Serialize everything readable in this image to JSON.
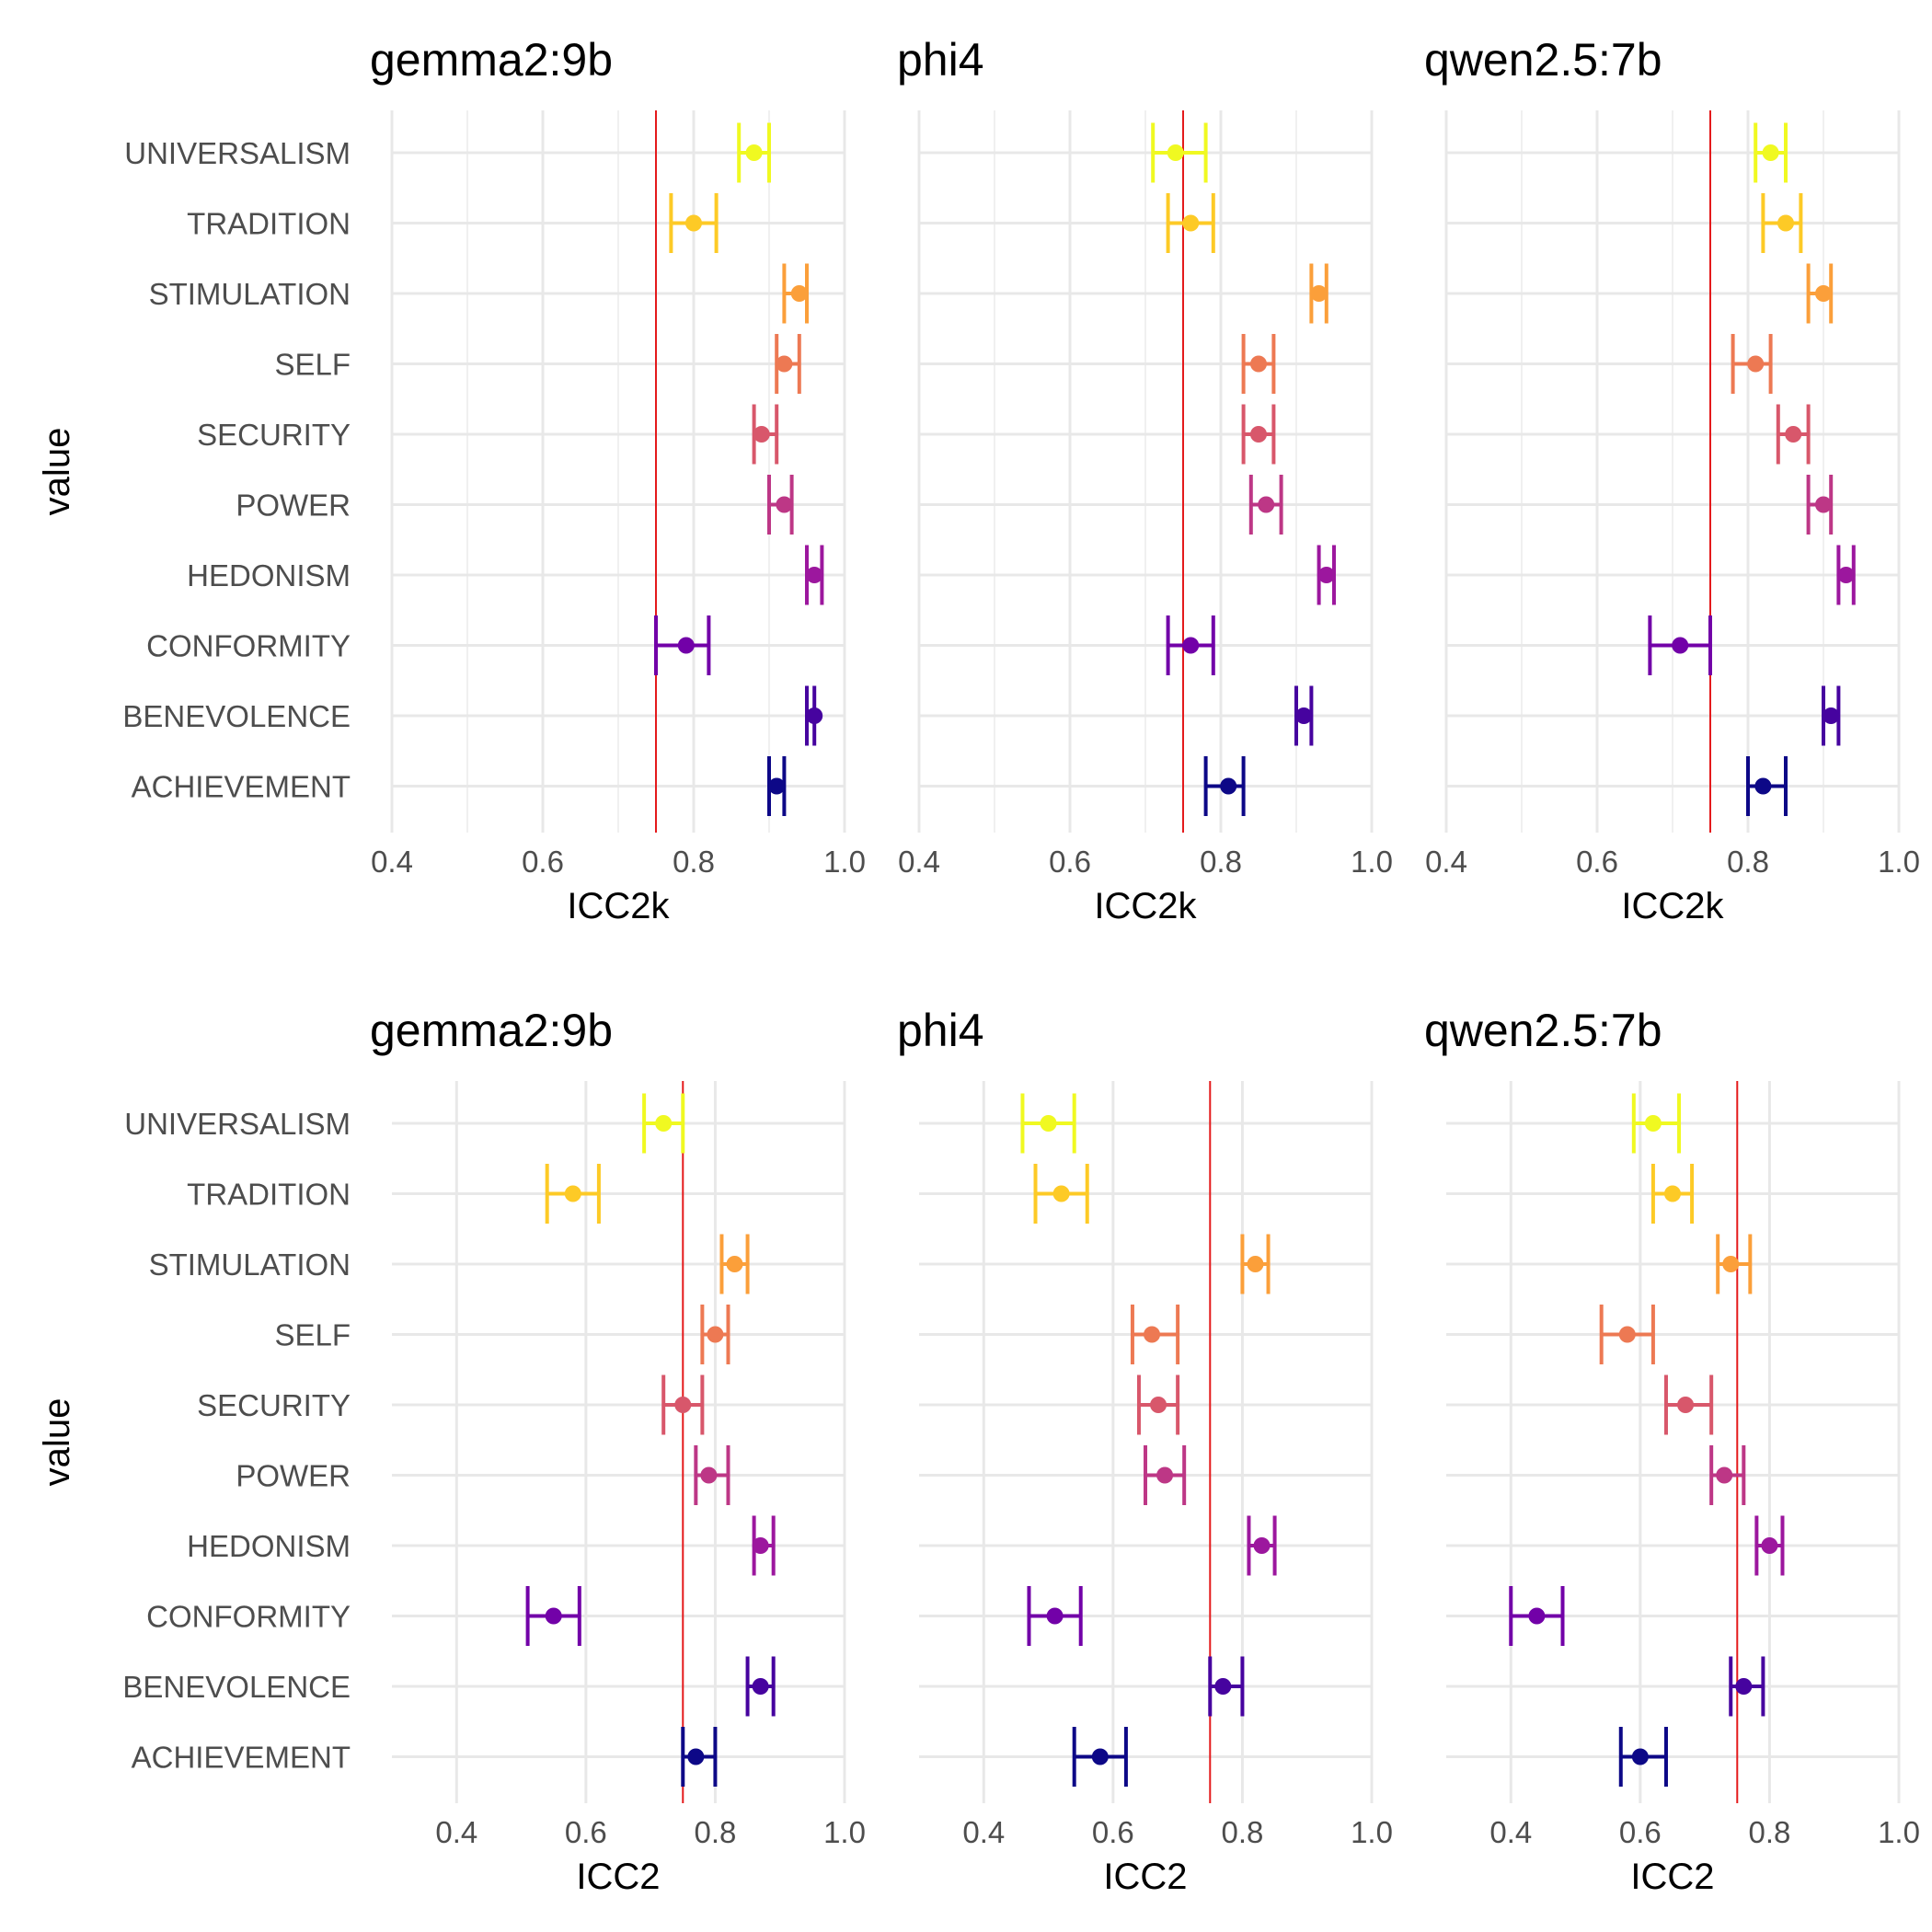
{
  "chart_data": {
    "type": "scatter",
    "description_style": "faceted point-range (point estimate with confidence interval error bars)",
    "categories": [
      "UNIVERSALISM",
      "TRADITION",
      "STIMULATION",
      "SELF",
      "SECURITY",
      "POWER",
      "HEDONISM",
      "CONFORMITY",
      "BENEVOLENCE",
      "ACHIEVEMENT"
    ],
    "colors": [
      "#f0f921",
      "#fdca26",
      "#fb9f3a",
      "#ed7953",
      "#d8576b",
      "#bd3786",
      "#9c179e",
      "#7201a8",
      "#46039f",
      "#0d0887"
    ],
    "ylabel": "value",
    "reference_line": {
      "x": 0.75,
      "color": "#e41a1c"
    },
    "grid": true,
    "legend": "none",
    "rows": [
      {
        "xlabel": "ICC2k",
        "xlim": [
          0.4,
          1.0
        ],
        "xticks": [
          "0.4",
          "0.6",
          "0.8",
          "1.0"
        ],
        "panels": [
          {
            "title": "gemma2:9b",
            "points": [
              {
                "est": 0.88,
                "lo": 0.86,
                "hi": 0.9
              },
              {
                "est": 0.8,
                "lo": 0.77,
                "hi": 0.83
              },
              {
                "est": 0.94,
                "lo": 0.92,
                "hi": 0.95
              },
              {
                "est": 0.92,
                "lo": 0.91,
                "hi": 0.94
              },
              {
                "est": 0.89,
                "lo": 0.88,
                "hi": 0.91
              },
              {
                "est": 0.92,
                "lo": 0.9,
                "hi": 0.93
              },
              {
                "est": 0.96,
                "lo": 0.95,
                "hi": 0.97
              },
              {
                "est": 0.79,
                "lo": 0.75,
                "hi": 0.82
              },
              {
                "est": 0.96,
                "lo": 0.95,
                "hi": 0.96
              },
              {
                "est": 0.91,
                "lo": 0.9,
                "hi": 0.92
              }
            ]
          },
          {
            "title": "phi4",
            "points": [
              {
                "est": 0.74,
                "lo": 0.71,
                "hi": 0.78
              },
              {
                "est": 0.76,
                "lo": 0.73,
                "hi": 0.79
              },
              {
                "est": 0.93,
                "lo": 0.92,
                "hi": 0.94
              },
              {
                "est": 0.85,
                "lo": 0.83,
                "hi": 0.87
              },
              {
                "est": 0.85,
                "lo": 0.83,
                "hi": 0.87
              },
              {
                "est": 0.86,
                "lo": 0.84,
                "hi": 0.88
              },
              {
                "est": 0.94,
                "lo": 0.93,
                "hi": 0.95
              },
              {
                "est": 0.76,
                "lo": 0.73,
                "hi": 0.79
              },
              {
                "est": 0.91,
                "lo": 0.9,
                "hi": 0.92
              },
              {
                "est": 0.81,
                "lo": 0.78,
                "hi": 0.83
              }
            ]
          },
          {
            "title": "qwen2.5:7b",
            "points": [
              {
                "est": 0.83,
                "lo": 0.81,
                "hi": 0.85
              },
              {
                "est": 0.85,
                "lo": 0.82,
                "hi": 0.87
              },
              {
                "est": 0.9,
                "lo": 0.88,
                "hi": 0.91
              },
              {
                "est": 0.81,
                "lo": 0.78,
                "hi": 0.83
              },
              {
                "est": 0.86,
                "lo": 0.84,
                "hi": 0.88
              },
              {
                "est": 0.9,
                "lo": 0.88,
                "hi": 0.91
              },
              {
                "est": 0.93,
                "lo": 0.92,
                "hi": 0.94
              },
              {
                "est": 0.71,
                "lo": 0.67,
                "hi": 0.75
              },
              {
                "est": 0.91,
                "lo": 0.9,
                "hi": 0.92
              },
              {
                "est": 0.82,
                "lo": 0.8,
                "hi": 0.85
              }
            ]
          }
        ]
      },
      {
        "xlabel": "ICC2",
        "xlim": [
          0.3,
          1.0
        ],
        "xticks": [
          "0.4",
          "0.6",
          "0.8",
          "1.0"
        ],
        "panels": [
          {
            "title": "gemma2:9b",
            "points": [
              {
                "est": 0.72,
                "lo": 0.69,
                "hi": 0.75
              },
              {
                "est": 0.58,
                "lo": 0.54,
                "hi": 0.62
              },
              {
                "est": 0.83,
                "lo": 0.81,
                "hi": 0.85
              },
              {
                "est": 0.8,
                "lo": 0.78,
                "hi": 0.82
              },
              {
                "est": 0.75,
                "lo": 0.72,
                "hi": 0.78
              },
              {
                "est": 0.79,
                "lo": 0.77,
                "hi": 0.82
              },
              {
                "est": 0.87,
                "lo": 0.86,
                "hi": 0.89
              },
              {
                "est": 0.55,
                "lo": 0.51,
                "hi": 0.59
              },
              {
                "est": 0.87,
                "lo": 0.85,
                "hi": 0.89
              },
              {
                "est": 0.77,
                "lo": 0.75,
                "hi": 0.8
              }
            ]
          },
          {
            "title": "phi4",
            "points": [
              {
                "est": 0.5,
                "lo": 0.46,
                "hi": 0.54
              },
              {
                "est": 0.52,
                "lo": 0.48,
                "hi": 0.56
              },
              {
                "est": 0.82,
                "lo": 0.8,
                "hi": 0.84
              },
              {
                "est": 0.66,
                "lo": 0.63,
                "hi": 0.7
              },
              {
                "est": 0.67,
                "lo": 0.64,
                "hi": 0.7
              },
              {
                "est": 0.68,
                "lo": 0.65,
                "hi": 0.71
              },
              {
                "est": 0.83,
                "lo": 0.81,
                "hi": 0.85
              },
              {
                "est": 0.51,
                "lo": 0.47,
                "hi": 0.55
              },
              {
                "est": 0.77,
                "lo": 0.75,
                "hi": 0.8
              },
              {
                "est": 0.58,
                "lo": 0.54,
                "hi": 0.62
              }
            ]
          },
          {
            "title": "qwen2.5:7b",
            "points": [
              {
                "est": 0.62,
                "lo": 0.59,
                "hi": 0.66
              },
              {
                "est": 0.65,
                "lo": 0.62,
                "hi": 0.68
              },
              {
                "est": 0.74,
                "lo": 0.72,
                "hi": 0.77
              },
              {
                "est": 0.58,
                "lo": 0.54,
                "hi": 0.62
              },
              {
                "est": 0.67,
                "lo": 0.64,
                "hi": 0.71
              },
              {
                "est": 0.73,
                "lo": 0.71,
                "hi": 0.76
              },
              {
                "est": 0.8,
                "lo": 0.78,
                "hi": 0.82
              },
              {
                "est": 0.44,
                "lo": 0.4,
                "hi": 0.48
              },
              {
                "est": 0.76,
                "lo": 0.74,
                "hi": 0.79
              },
              {
                "est": 0.6,
                "lo": 0.57,
                "hi": 0.64
              }
            ]
          }
        ]
      }
    ]
  }
}
